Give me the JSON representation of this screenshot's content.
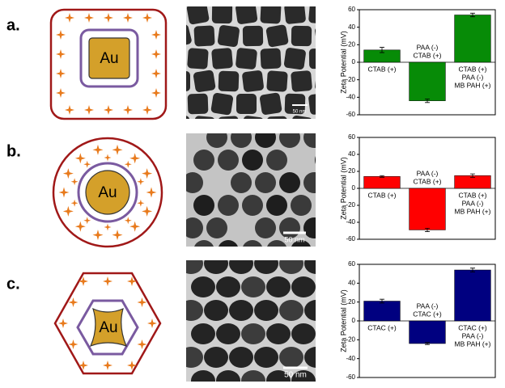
{
  "panels": [
    {
      "label": "a.",
      "core": "Au",
      "scale_bar": "50 nm"
    },
    {
      "label": "b.",
      "core": "Au",
      "scale_bar": "50 nm"
    },
    {
      "label": "c.",
      "core": "Au",
      "scale_bar": "50 nm"
    }
  ],
  "chart_data": [
    {
      "type": "bar",
      "ylabel": "Zeta Potential (mV)",
      "categories": [
        [
          "CTAB (+)"
        ],
        [
          "PAA (-)",
          "CTAB (+)"
        ],
        [
          "CTAB (+)",
          "PAA (-)",
          "MB PAH (+)"
        ]
      ],
      "values": [
        14,
        -44,
        54
      ],
      "errors": [
        3,
        2,
        2
      ],
      "color": "#078b07",
      "ylim": [
        -60,
        60
      ],
      "yticks": [
        -60,
        -40,
        -20,
        0,
        20,
        40,
        60
      ]
    },
    {
      "type": "bar",
      "ylabel": "Zeta Potential (mV)",
      "categories": [
        [
          "CTAB (+)"
        ],
        [
          "PAA (-)",
          "CTAB (+)"
        ],
        [
          "CTAB (+)",
          "PAA (-)",
          "MB PAH (+)"
        ]
      ],
      "values": [
        14,
        -49,
        15
      ],
      "errors": [
        1,
        2,
        2
      ],
      "color": "#ff0000",
      "ylim": [
        -60,
        60
      ],
      "yticks": [
        -60,
        -40,
        -20,
        0,
        20,
        40,
        60
      ]
    },
    {
      "type": "bar",
      "ylabel": "Zeta Potential (mV)",
      "categories": [
        [
          "CTAC (+)"
        ],
        [
          "PAA (-)",
          "CTAC (+)"
        ],
        [
          "CTAC (+)",
          "PAA (-)",
          "MB PAH (+)"
        ]
      ],
      "values": [
        21,
        -24,
        54
      ],
      "errors": [
        2,
        1,
        2
      ],
      "color": "#000080",
      "ylim": [
        -60,
        60
      ],
      "yticks": [
        -60,
        -40,
        -20,
        0,
        20,
        40,
        60
      ]
    }
  ]
}
